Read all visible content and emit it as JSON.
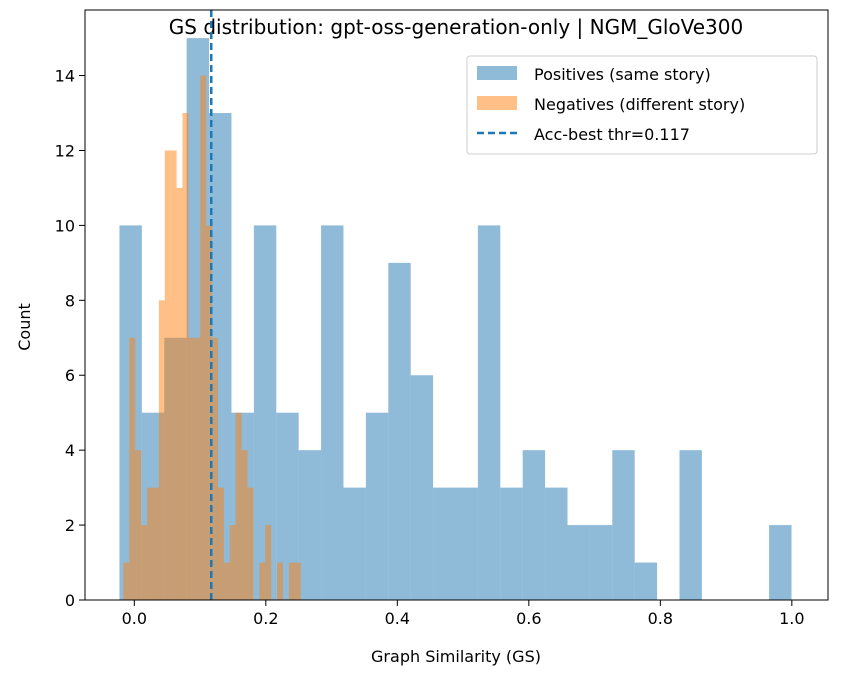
{
  "chart_data": {
    "type": "histogram",
    "title": "GS distribution: gpt-oss-generation-only | NGM_GloVe300",
    "xlabel": "Graph Similarity (GS)",
    "ylabel": "Count",
    "xlim": [
      -0.075,
      1.055
    ],
    "ylim": [
      0,
      15.75
    ],
    "xticks": [
      0.0,
      0.2,
      0.4,
      0.6,
      0.8,
      1.0
    ],
    "xtick_labels": [
      "0.0",
      "0.2",
      "0.4",
      "0.6",
      "0.8",
      "1.0"
    ],
    "yticks": [
      0,
      2,
      4,
      6,
      8,
      10,
      12,
      14
    ],
    "ytick_labels": [
      "0",
      "2",
      "4",
      "6",
      "8",
      "10",
      "12",
      "14"
    ],
    "grid": false,
    "legend_position": "top-right",
    "series": [
      {
        "name": "Positives (same story)",
        "color": "#1f77b4",
        "alpha": 0.5,
        "bin_start": -0.0226,
        "bin_width": 0.03407,
        "counts": [
          10,
          5,
          7,
          15,
          13,
          5,
          10,
          5,
          4,
          10,
          3,
          5,
          9,
          6,
          3,
          3,
          10,
          3,
          4,
          3,
          2,
          2,
          4,
          1,
          0,
          4,
          0,
          0,
          0,
          2
        ]
      },
      {
        "name": "Negatives (different story)",
        "color": "#ff7f0e",
        "alpha": 0.5,
        "bin_start": -0.0166,
        "bin_width": 0.00899,
        "counts": [
          1,
          7,
          4,
          2,
          3,
          3,
          8,
          12,
          12,
          11,
          13,
          7,
          7,
          14,
          10,
          7,
          3,
          1,
          2,
          5,
          4,
          3,
          0,
          1,
          2,
          0,
          1,
          0,
          1,
          1
        ]
      }
    ],
    "threshold": {
      "label": "Acc-best thr=0.117",
      "value": 0.117,
      "color": "#1f77b4",
      "style": "dashed"
    }
  }
}
